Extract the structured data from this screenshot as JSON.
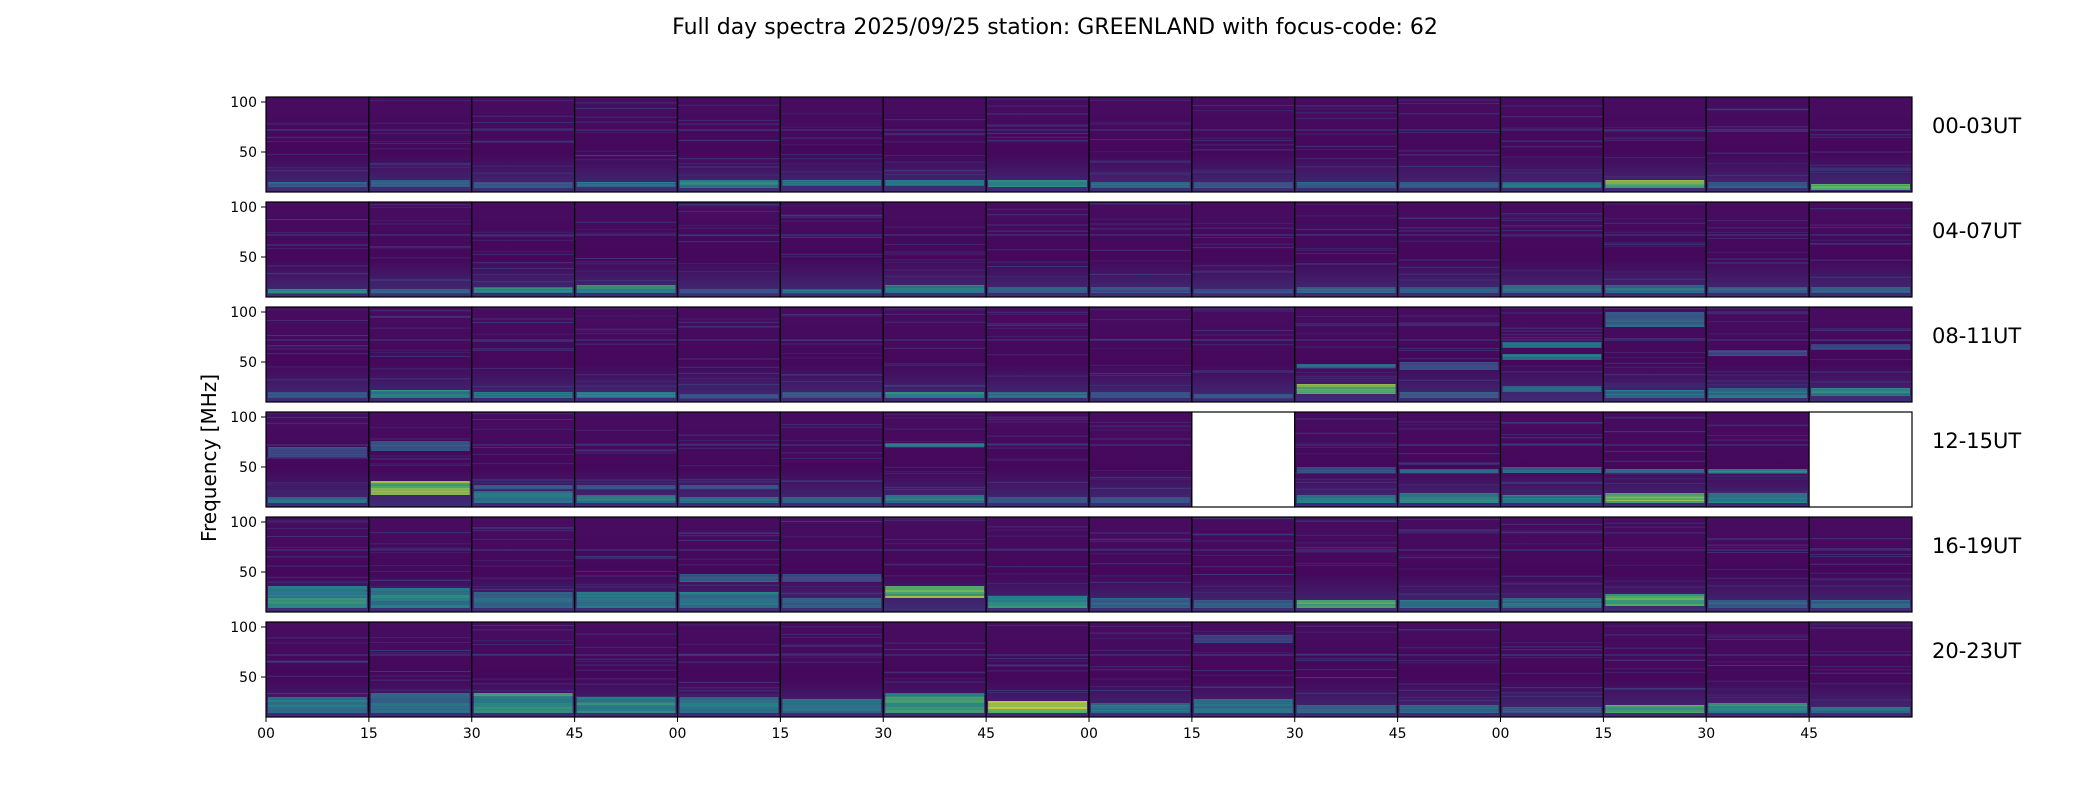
{
  "title": "Full day spectra 2025/09/25 station: GREENLAND with focus-code: 62",
  "chart_data": {
    "type": "heatmap",
    "title": "Full day spectra 2025/09/25 station: GREENLAND with focus-code: 62",
    "ylabel": "Frequency [MHz]",
    "xlabel": "",
    "ylim": [
      10,
      105
    ],
    "y_ticks": [
      50,
      100
    ],
    "y_tick_labels": [
      "50",
      "100"
    ],
    "x_tick_labels": [
      "00",
      "15",
      "30",
      "45",
      "00",
      "15",
      "30",
      "45",
      "00",
      "15",
      "30",
      "45",
      "00",
      "15",
      "30",
      "45"
    ],
    "colormap": "viridis",
    "colors": {
      "background": "#46085c",
      "band_low": "#31688e",
      "band_mid": "#21918c",
      "band_high": "#5ec962",
      "rfi_line": "#3b528b",
      "missing": "#ffffff"
    },
    "rows": [
      {
        "label": "00-03UT",
        "panels": [
          {
            "bands": [
              [
                15,
                20,
                0.35
              ]
            ]
          },
          {
            "bands": [
              [
                15,
                22,
                0.4
              ]
            ]
          },
          {
            "bands": [
              [
                14,
                20,
                0.35
              ]
            ]
          },
          {
            "bands": [
              [
                15,
                20,
                0.45
              ]
            ]
          },
          {
            "bands": [
              [
                14,
                22,
                0.55
              ]
            ]
          },
          {
            "bands": [
              [
                16,
                22,
                0.45
              ]
            ]
          },
          {
            "bands": [
              [
                16,
                22,
                0.45
              ]
            ]
          },
          {
            "bands": [
              [
                15,
                22,
                0.55
              ]
            ]
          },
          {
            "bands": [
              [
                14,
                20,
                0.4
              ]
            ]
          },
          {
            "bands": [
              [
                14,
                20,
                0.35
              ]
            ]
          },
          {
            "bands": [
              [
                14,
                20,
                0.35
              ]
            ]
          },
          {
            "bands": [
              [
                14,
                20,
                0.35
              ]
            ]
          },
          {
            "bands": [
              [
                14,
                20,
                0.45
              ]
            ]
          },
          {
            "bands": [
              [
                14,
                22,
                0.8
              ]
            ]
          },
          {
            "bands": [
              [
                14,
                20,
                0.35
              ]
            ]
          },
          {
            "bands": [
              [
                12,
                18,
                0.75
              ]
            ]
          }
        ]
      },
      {
        "label": "04-07UT",
        "panels": [
          {
            "bands": [
              [
                14,
                18,
                0.6
              ]
            ]
          },
          {
            "bands": [
              [
                14,
                18,
                0.35
              ]
            ]
          },
          {
            "bands": [
              [
                14,
                20,
                0.55
              ]
            ]
          },
          {
            "bands": [
              [
                14,
                22,
                0.6
              ]
            ]
          },
          {
            "bands": [
              [
                14,
                18,
                0.3
              ]
            ]
          },
          {
            "bands": [
              [
                14,
                18,
                0.4
              ]
            ]
          },
          {
            "bands": [
              [
                14,
                22,
                0.55
              ]
            ]
          },
          {
            "bands": [
              [
                14,
                20,
                0.35
              ]
            ]
          },
          {
            "bands": [
              [
                14,
                20,
                0.3
              ]
            ]
          },
          {
            "bands": [
              [
                14,
                18,
                0.3
              ]
            ]
          },
          {
            "bands": [
              [
                14,
                20,
                0.4
              ]
            ]
          },
          {
            "bands": [
              [
                14,
                20,
                0.35
              ]
            ]
          },
          {
            "bands": [
              [
                14,
                22,
                0.45
              ]
            ]
          },
          {
            "bands": [
              [
                14,
                22,
                0.45
              ]
            ]
          },
          {
            "bands": [
              [
                14,
                20,
                0.4
              ]
            ]
          },
          {
            "bands": [
              [
                14,
                20,
                0.4
              ]
            ]
          }
        ]
      },
      {
        "label": "08-11UT",
        "panels": [
          {
            "bands": [
              [
                14,
                20,
                0.35
              ]
            ]
          },
          {
            "bands": [
              [
                14,
                22,
                0.55
              ]
            ]
          },
          {
            "bands": [
              [
                14,
                20,
                0.45
              ]
            ]
          },
          {
            "bands": [
              [
                14,
                20,
                0.5
              ]
            ]
          },
          {
            "bands": [
              [
                14,
                18,
                0.3
              ]
            ]
          },
          {
            "bands": [
              [
                14,
                20,
                0.35
              ]
            ]
          },
          {
            "bands": [
              [
                14,
                20,
                0.55
              ]
            ]
          },
          {
            "bands": [
              [
                14,
                20,
                0.45
              ]
            ]
          },
          {
            "bands": [
              [
                14,
                20,
                0.35
              ]
            ]
          },
          {
            "bands": [
              [
                14,
                18,
                0.3
              ]
            ]
          },
          {
            "bands": [
              [
                18,
                28,
                0.8
              ],
              [
                44,
                48,
                0.4
              ]
            ]
          },
          {
            "bands": [
              [
                14,
                20,
                0.35
              ],
              [
                42,
                50,
                0.35
              ]
            ]
          },
          {
            "bands": [
              [
                52,
                58,
                0.5
              ],
              [
                64,
                70,
                0.45
              ],
              [
                20,
                26,
                0.4
              ]
            ]
          },
          {
            "bands": [
              [
                14,
                22,
                0.45
              ],
              [
                85,
                100,
                0.4
              ]
            ]
          },
          {
            "bands": [
              [
                14,
                24,
                0.45
              ],
              [
                56,
                62,
                0.3
              ]
            ]
          },
          {
            "bands": [
              [
                16,
                24,
                0.55
              ],
              [
                62,
                68,
                0.25
              ]
            ]
          }
        ]
      },
      {
        "label": "12-15UT",
        "panels": [
          {
            "bands": [
              [
                14,
                20,
                0.45
              ],
              [
                60,
                70,
                0.3
              ]
            ]
          },
          {
            "bands": [
              [
                22,
                36,
                0.8
              ],
              [
                66,
                76,
                0.35
              ]
            ]
          },
          {
            "bands": [
              [
                14,
                26,
                0.5
              ],
              [
                28,
                32,
                0.35
              ]
            ]
          },
          {
            "bands": [
              [
                14,
                22,
                0.5
              ],
              [
                28,
                32,
                0.3
              ]
            ]
          },
          {
            "bands": [
              [
                14,
                20,
                0.45
              ],
              [
                28,
                32,
                0.3
              ]
            ]
          },
          {
            "bands": [
              [
                14,
                20,
                0.4
              ]
            ]
          },
          {
            "bands": [
              [
                14,
                22,
                0.5
              ],
              [
                70,
                74,
                0.45
              ]
            ]
          },
          {
            "bands": [
              [
                14,
                20,
                0.3
              ]
            ]
          },
          {
            "bands": [
              [
                14,
                20,
                0.3
              ]
            ]
          },
          {
            "missing": true,
            "bands": []
          },
          {
            "bands": [
              [
                14,
                22,
                0.55
              ],
              [
                44,
                50,
                0.3
              ]
            ]
          },
          {
            "bands": [
              [
                14,
                24,
                0.55
              ],
              [
                44,
                48,
                0.4
              ]
            ]
          },
          {
            "bands": [
              [
                14,
                22,
                0.5
              ],
              [
                44,
                50,
                0.4
              ]
            ]
          },
          {
            "bands": [
              [
                14,
                24,
                0.8
              ],
              [
                44,
                48,
                0.4
              ]
            ]
          },
          {
            "bands": [
              [
                14,
                24,
                0.55
              ],
              [
                44,
                48,
                0.5
              ]
            ]
          },
          {
            "missing": true,
            "bands": []
          }
        ]
      },
      {
        "label": "16-19UT",
        "panels": [
          {
            "bands": [
              [
                14,
                36,
                0.55
              ],
              [
                24,
                30,
                0.45
              ]
            ]
          },
          {
            "bands": [
              [
                14,
                34,
                0.5
              ]
            ]
          },
          {
            "bands": [
              [
                14,
                30,
                0.45
              ]
            ]
          },
          {
            "bands": [
              [
                14,
                30,
                0.45
              ]
            ]
          },
          {
            "bands": [
              [
                14,
                30,
                0.5
              ],
              [
                40,
                48,
                0.4
              ]
            ]
          },
          {
            "bands": [
              [
                14,
                24,
                0.4
              ],
              [
                40,
                48,
                0.3
              ]
            ]
          },
          {
            "bands": [
              [
                24,
                36,
                0.8
              ]
            ]
          },
          {
            "bands": [
              [
                14,
                26,
                0.55
              ]
            ]
          },
          {
            "bands": [
              [
                14,
                24,
                0.4
              ]
            ]
          },
          {
            "bands": [
              [
                14,
                22,
                0.35
              ]
            ]
          },
          {
            "bands": [
              [
                14,
                22,
                0.75
              ]
            ]
          },
          {
            "bands": [
              [
                14,
                22,
                0.5
              ]
            ]
          },
          {
            "bands": [
              [
                14,
                24,
                0.45
              ]
            ]
          },
          {
            "bands": [
              [
                16,
                28,
                0.75
              ]
            ]
          },
          {
            "bands": [
              [
                14,
                22,
                0.4
              ]
            ]
          },
          {
            "bands": [
              [
                14,
                22,
                0.4
              ]
            ]
          }
        ]
      },
      {
        "label": "20-23UT",
        "panels": [
          {
            "bands": [
              [
                14,
                30,
                0.45
              ]
            ]
          },
          {
            "bands": [
              [
                14,
                34,
                0.45
              ]
            ]
          },
          {
            "bands": [
              [
                14,
                34,
                0.6
              ]
            ]
          },
          {
            "bands": [
              [
                14,
                30,
                0.55
              ]
            ]
          },
          {
            "bands": [
              [
                14,
                30,
                0.45
              ]
            ]
          },
          {
            "bands": [
              [
                14,
                28,
                0.45
              ]
            ]
          },
          {
            "bands": [
              [
                14,
                34,
                0.6
              ]
            ]
          },
          {
            "bands": [
              [
                14,
                26,
                0.9
              ]
            ]
          },
          {
            "bands": [
              [
                14,
                24,
                0.45
              ]
            ]
          },
          {
            "bands": [
              [
                14,
                28,
                0.45
              ],
              [
                84,
                92,
                0.25
              ]
            ]
          },
          {
            "bands": [
              [
                14,
                22,
                0.4
              ]
            ]
          },
          {
            "bands": [
              [
                14,
                22,
                0.4
              ]
            ]
          },
          {
            "bands": [
              [
                14,
                20,
                0.35
              ]
            ]
          },
          {
            "bands": [
              [
                14,
                22,
                0.75
              ]
            ]
          },
          {
            "bands": [
              [
                14,
                24,
                0.6
              ]
            ]
          },
          {
            "bands": [
              [
                14,
                20,
                0.45
              ]
            ]
          }
        ]
      }
    ]
  }
}
